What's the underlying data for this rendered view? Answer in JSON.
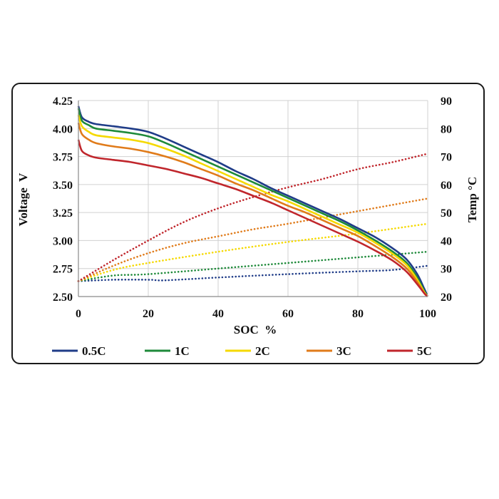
{
  "chart_data": {
    "type": "line",
    "title": "",
    "xlabel": "SOC  %",
    "ylabel_left": "Voltage  V",
    "ylabel_right": "Temp °C",
    "xlim": [
      0,
      100
    ],
    "ylim_left": [
      2.5,
      4.25
    ],
    "ylim_right": [
      20,
      90
    ],
    "x_ticks": [
      "0",
      "20",
      "40",
      "60",
      "80",
      "100"
    ],
    "y_left_ticks": [
      "2.50",
      "2.75",
      "3.00",
      "3.25",
      "3.50",
      "3.75",
      "4.00",
      "4.25"
    ],
    "y_right_ticks": [
      "20",
      "30",
      "40",
      "50",
      "60",
      "70",
      "80",
      "90"
    ],
    "grid": true,
    "legend_position": "bottom",
    "series": [
      {
        "name": "0.5C",
        "color": "#1f3c88",
        "voltage": [
          [
            0,
            4.2
          ],
          [
            1,
            4.1
          ],
          [
            3,
            4.06
          ],
          [
            5,
            4.04
          ],
          [
            10,
            4.02
          ],
          [
            15,
            4.0
          ],
          [
            20,
            3.97
          ],
          [
            25,
            3.91
          ],
          [
            30,
            3.84
          ],
          [
            35,
            3.77
          ],
          [
            40,
            3.7
          ],
          [
            45,
            3.62
          ],
          [
            50,
            3.55
          ],
          [
            55,
            3.47
          ],
          [
            60,
            3.4
          ],
          [
            65,
            3.33
          ],
          [
            70,
            3.26
          ],
          [
            75,
            3.19
          ],
          [
            80,
            3.11
          ],
          [
            85,
            3.03
          ],
          [
            90,
            2.93
          ],
          [
            94,
            2.83
          ],
          [
            97,
            2.7
          ],
          [
            99,
            2.57
          ],
          [
            100,
            2.5
          ]
        ],
        "temperature": [
          [
            0,
            25.5
          ],
          [
            10,
            26
          ],
          [
            20,
            26
          ],
          [
            25,
            25.8
          ],
          [
            40,
            26.8
          ],
          [
            60,
            28
          ],
          [
            80,
            29
          ],
          [
            90,
            29.5
          ],
          [
            100,
            31
          ]
        ]
      },
      {
        "name": "1C",
        "color": "#1e8a3a",
        "voltage": [
          [
            0,
            4.18
          ],
          [
            1,
            4.07
          ],
          [
            3,
            4.03
          ],
          [
            5,
            4.0
          ],
          [
            10,
            3.98
          ],
          [
            15,
            3.96
          ],
          [
            20,
            3.93
          ],
          [
            25,
            3.87
          ],
          [
            30,
            3.8
          ],
          [
            35,
            3.73
          ],
          [
            40,
            3.66
          ],
          [
            45,
            3.59
          ],
          [
            50,
            3.52
          ],
          [
            55,
            3.45
          ],
          [
            60,
            3.38
          ],
          [
            65,
            3.31
          ],
          [
            70,
            3.24
          ],
          [
            75,
            3.17
          ],
          [
            80,
            3.09
          ],
          [
            85,
            3.0
          ],
          [
            90,
            2.9
          ],
          [
            94,
            2.8
          ],
          [
            97,
            2.67
          ],
          [
            99,
            2.55
          ],
          [
            100,
            2.5
          ]
        ],
        "temperature": [
          [
            0,
            25.5
          ],
          [
            10,
            27.5
          ],
          [
            20,
            28
          ],
          [
            40,
            30
          ],
          [
            60,
            32
          ],
          [
            80,
            34
          ],
          [
            100,
            36
          ]
        ]
      },
      {
        "name": "2C",
        "color": "#f5d900",
        "voltage": [
          [
            0,
            4.12
          ],
          [
            1,
            4.02
          ],
          [
            3,
            3.97
          ],
          [
            5,
            3.94
          ],
          [
            10,
            3.92
          ],
          [
            15,
            3.9
          ],
          [
            20,
            3.87
          ],
          [
            25,
            3.82
          ],
          [
            30,
            3.76
          ],
          [
            35,
            3.69
          ],
          [
            40,
            3.62
          ],
          [
            45,
            3.55
          ],
          [
            50,
            3.48
          ],
          [
            55,
            3.41
          ],
          [
            60,
            3.35
          ],
          [
            65,
            3.28
          ],
          [
            70,
            3.21
          ],
          [
            75,
            3.14
          ],
          [
            80,
            3.07
          ],
          [
            85,
            2.98
          ],
          [
            90,
            2.88
          ],
          [
            94,
            2.78
          ],
          [
            97,
            2.65
          ],
          [
            99,
            2.54
          ],
          [
            100,
            2.5
          ]
        ],
        "temperature": [
          [
            0,
            25.5
          ],
          [
            10,
            29.5
          ],
          [
            20,
            32
          ],
          [
            40,
            36
          ],
          [
            60,
            39.5
          ],
          [
            80,
            42.5
          ],
          [
            100,
            46
          ]
        ]
      },
      {
        "name": "3C",
        "color": "#e07b1a",
        "voltage": [
          [
            0,
            4.05
          ],
          [
            1,
            3.95
          ],
          [
            3,
            3.9
          ],
          [
            5,
            3.87
          ],
          [
            10,
            3.84
          ],
          [
            15,
            3.82
          ],
          [
            20,
            3.79
          ],
          [
            25,
            3.75
          ],
          [
            30,
            3.7
          ],
          [
            35,
            3.64
          ],
          [
            40,
            3.58
          ],
          [
            45,
            3.51
          ],
          [
            50,
            3.45
          ],
          [
            55,
            3.38
          ],
          [
            60,
            3.31
          ],
          [
            65,
            3.25
          ],
          [
            70,
            3.18
          ],
          [
            75,
            3.11
          ],
          [
            80,
            3.04
          ],
          [
            85,
            2.95
          ],
          [
            90,
            2.85
          ],
          [
            94,
            2.75
          ],
          [
            97,
            2.63
          ],
          [
            99,
            2.53
          ],
          [
            100,
            2.5
          ]
        ],
        "temperature": [
          [
            0,
            25.5
          ],
          [
            10,
            31
          ],
          [
            20,
            35.5
          ],
          [
            30,
            39
          ],
          [
            40,
            41.5
          ],
          [
            50,
            44
          ],
          [
            60,
            46
          ],
          [
            80,
            50.5
          ],
          [
            100,
            55
          ]
        ]
      },
      {
        "name": "5C",
        "color": "#c0262c",
        "voltage": [
          [
            0,
            3.9
          ],
          [
            1,
            3.8
          ],
          [
            3,
            3.76
          ],
          [
            5,
            3.74
          ],
          [
            10,
            3.72
          ],
          [
            15,
            3.7
          ],
          [
            20,
            3.67
          ],
          [
            25,
            3.64
          ],
          [
            30,
            3.6
          ],
          [
            35,
            3.56
          ],
          [
            40,
            3.51
          ],
          [
            45,
            3.46
          ],
          [
            50,
            3.4
          ],
          [
            55,
            3.34
          ],
          [
            60,
            3.27
          ],
          [
            65,
            3.2
          ],
          [
            70,
            3.13
          ],
          [
            75,
            3.06
          ],
          [
            80,
            2.99
          ],
          [
            85,
            2.91
          ],
          [
            90,
            2.82
          ],
          [
            94,
            2.72
          ],
          [
            97,
            2.61
          ],
          [
            99,
            2.53
          ],
          [
            100,
            2.5
          ]
        ],
        "temperature": [
          [
            0,
            25.5
          ],
          [
            10,
            33
          ],
          [
            20,
            40
          ],
          [
            30,
            46.5
          ],
          [
            40,
            51.5
          ],
          [
            50,
            55.5
          ],
          [
            60,
            59
          ],
          [
            70,
            62
          ],
          [
            80,
            65.5
          ],
          [
            90,
            68
          ],
          [
            100,
            71
          ]
        ]
      }
    ]
  }
}
